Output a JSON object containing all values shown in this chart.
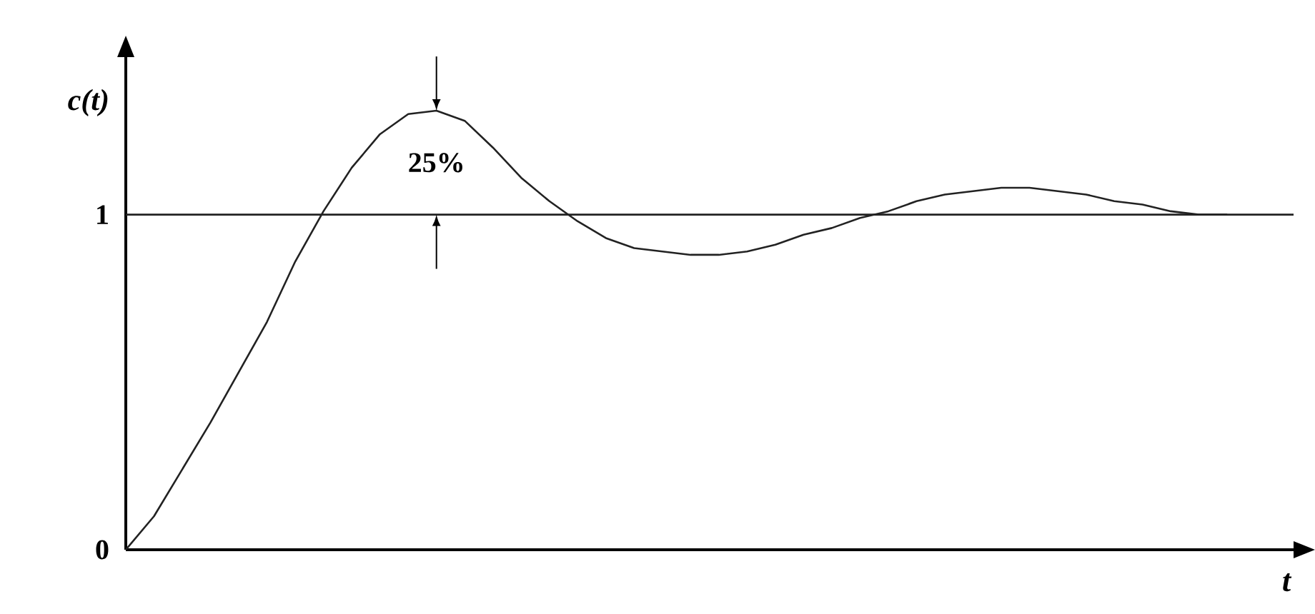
{
  "chart_data": {
    "type": "line",
    "xlabel": "t",
    "ylabel": "c(t)",
    "categories": [
      null,
      null,
      null,
      null,
      null,
      null,
      null,
      null,
      null,
      null,
      null,
      null,
      null,
      null,
      null,
      null,
      null,
      null,
      null,
      null,
      null,
      null,
      null,
      null,
      null,
      null,
      null,
      null,
      null,
      null,
      null,
      null,
      null,
      null,
      null,
      null,
      null,
      null,
      null,
      null
    ],
    "values": [
      0,
      0.1,
      0.24,
      0.38,
      0.53,
      0.68,
      0.86,
      1.01,
      1.14,
      1.24,
      1.3,
      1.31,
      1.28,
      1.2,
      1.11,
      1.04,
      0.98,
      0.93,
      0.9,
      0.89,
      0.88,
      0.88,
      0.89,
      0.91,
      0.94,
      0.96,
      0.99,
      1.01,
      1.04,
      1.06,
      1.07,
      1.08,
      1.08,
      1.07,
      1.06,
      1.04,
      1.03,
      1.01,
      1.0,
      1.0
    ],
    "color": "#222222",
    "marker": "none",
    "line_style": "solid",
    "ylim": [
      0,
      1.47
    ],
    "yticks": [
      0,
      1
    ],
    "ref_lines": [
      {
        "axis": "y",
        "value": 1,
        "color": "#222222"
      }
    ],
    "annotations": [
      "25%"
    ]
  }
}
